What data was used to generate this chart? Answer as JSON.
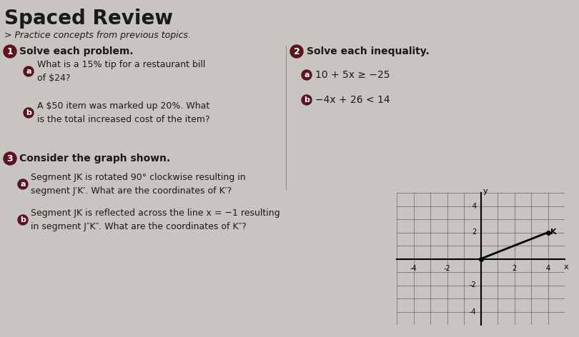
{
  "bg_color": "#c8c4c0",
  "title": "Spaced Review",
  "subtitle": "> Practice concepts from previous topics.",
  "section1_title": "Solve each problem.",
  "section1_a": "What is a 15% tip for a restaurant bill\nof $24?",
  "section1_b": "A $50 item was marked up 20%. What\nis the total increased cost of the item?",
  "section2_title": "Solve each inequality.",
  "section2_a": "10 + 5x ≥ −25",
  "section2_b": "−4x + 26 < 14",
  "section3_title": "Consider the graph shown.",
  "section3_a": "Segment JK is rotated 90° clockwise resulting in\nsegment J′K′. What are the coordinates of K′?",
  "section3_b": "Segment JK is reflected across the line x = −1 resulting\nin segment J″K″. What are the coordinates of K″?",
  "circle_color": "#5a1520",
  "label_color": "#1a1a1a",
  "graph_J": [
    0,
    0
  ],
  "graph_K": [
    4,
    2
  ]
}
